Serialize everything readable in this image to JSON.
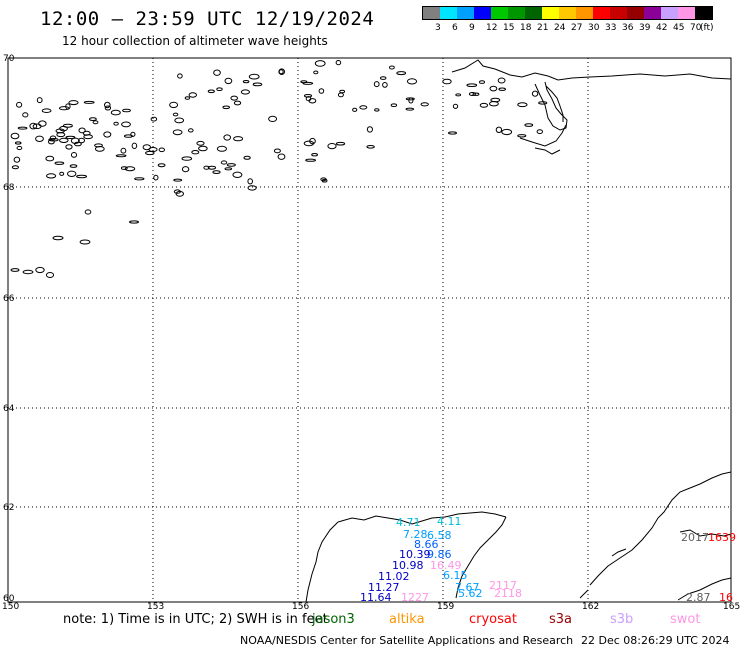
{
  "header": {
    "title": "12:00 – 23:59 UTC 12/19/2024",
    "subtitle": "12 hour collection of altimeter wave heights"
  },
  "legend": {
    "colors": [
      "#808080",
      "#00e5ff",
      "#00a0ff",
      "#0000ff",
      "#00c800",
      "#009600",
      "#006400",
      "#ffff00",
      "#ffc800",
      "#ff9600",
      "#ff0000",
      "#c80000",
      "#960000",
      "#8b0096",
      "#c8a0ff",
      "#ff96e6",
      "#000000"
    ],
    "labels": [
      "3",
      "6",
      "9",
      "12",
      "15",
      "18",
      "21",
      "24",
      "27",
      "30",
      "33",
      "36",
      "39",
      "42",
      "45",
      "70",
      "(ft)"
    ]
  },
  "axes": {
    "lon_labels": [
      "150",
      "153",
      "156",
      "159",
      "162",
      "165"
    ],
    "lat_labels": [
      "70",
      "68",
      "66",
      "64",
      "62",
      "60"
    ]
  },
  "wave_heights": [
    {
      "text": "4.71",
      "color": "#00bcd4"
    },
    {
      "text": "4.11",
      "color": "#00bcd4"
    },
    {
      "text": "7.28",
      "color": "#00a0ff"
    },
    {
      "text": "6.58",
      "color": "#00a0ff"
    },
    {
      "text": "8.66",
      "color": "#0060ff"
    },
    {
      "text": "9.86",
      "color": "#0060ff"
    },
    {
      "text": "10.39",
      "color": "#0000c8"
    },
    {
      "text": "10.98",
      "color": "#0000c8"
    },
    {
      "text": "16.49",
      "color": "#ff96e6"
    },
    {
      "text": "11.02",
      "color": "#0000c8"
    },
    {
      "text": "6.15",
      "color": "#00a0ff"
    },
    {
      "text": "11.27",
      "color": "#0000c8"
    },
    {
      "text": "7.67",
      "color": "#00a0ff"
    },
    {
      "text": "2117",
      "color": "#ff96e6"
    },
    {
      "text": "11.64",
      "color": "#0000c8"
    },
    {
      "text": "1227",
      "color": "#ff96e6"
    },
    {
      "text": "5.62",
      "color": "#00a0ff"
    },
    {
      "text": "2118",
      "color": "#ff96e6"
    },
    {
      "text": "2017",
      "color": "#606060"
    },
    {
      "text": "1639",
      "color": "#ff0000"
    },
    {
      "text": "2.87",
      "color": "#606060"
    },
    {
      "text": "16",
      "color": "#ff0000"
    }
  ],
  "note": "note: 1) Time is in UTC; 2) SWH is in feet",
  "satellites": [
    {
      "name": "jason3",
      "color": "#006400"
    },
    {
      "name": "altika",
      "color": "#ff9600"
    },
    {
      "name": "cryosat",
      "color": "#ff0000"
    },
    {
      "name": "s3a",
      "color": "#960000"
    },
    {
      "name": "s3b",
      "color": "#c8a0ff"
    },
    {
      "name": "swot",
      "color": "#ff96e6"
    }
  ],
  "footer": {
    "credit": "NOAA/NESDIS Center for Satellite Applications and Research",
    "generated": "22 Dec 08:26:29 UTC 2024"
  }
}
